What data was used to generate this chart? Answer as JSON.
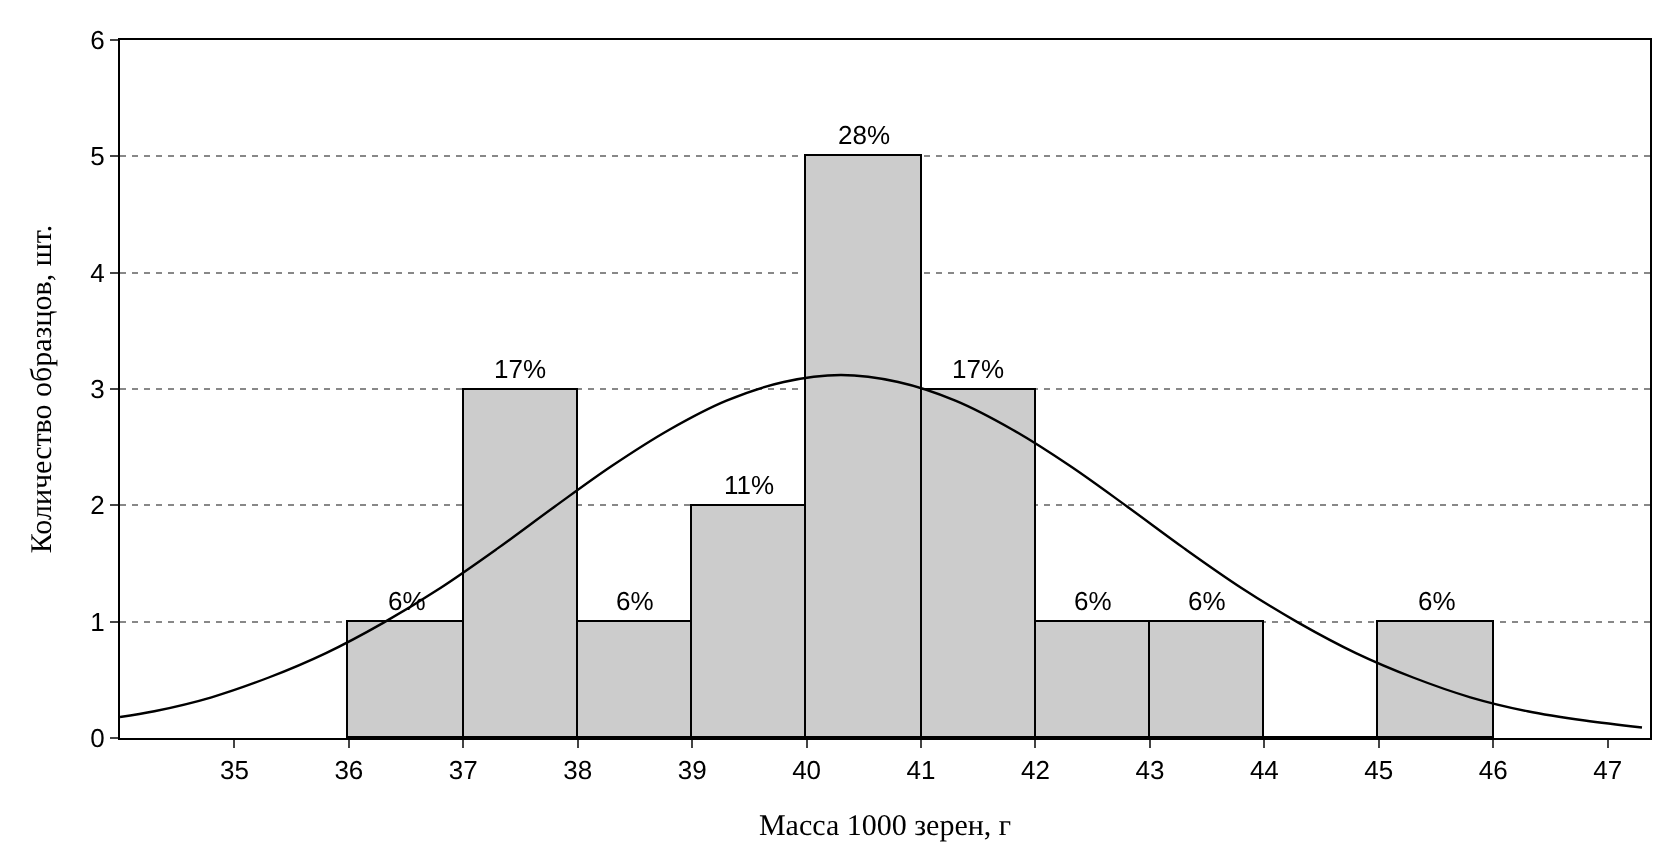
{
  "chart_data": {
    "type": "histogram",
    "xlabel": "Масса 1000 зерен, г",
    "ylabel": "Количество образцов, шт.",
    "bins": [
      36,
      37,
      38,
      39,
      40,
      41,
      42,
      43,
      44,
      45,
      46
    ],
    "values": [
      1,
      3,
      1,
      2,
      5,
      3,
      1,
      1,
      0,
      1
    ],
    "annotations": [
      {
        "text": "6%",
        "x": 36.5,
        "y": 1
      },
      {
        "text": "17%",
        "x": 37.5,
        "y": 3
      },
      {
        "text": "6%",
        "x": 38.5,
        "y": 1
      },
      {
        "text": "11%",
        "x": 39.5,
        "y": 2
      },
      {
        "text": "28%",
        "x": 40.5,
        "y": 5
      },
      {
        "text": "17%",
        "x": 41.5,
        "y": 3
      },
      {
        "text": "6%",
        "x": 42.5,
        "y": 1
      },
      {
        "text": "6%",
        "x": 43.5,
        "y": 1
      },
      {
        "text": "6%",
        "x": 45.5,
        "y": 1
      }
    ],
    "color": "#cccccc",
    "series": [
      {
        "type": "line",
        "color": "#000000",
        "x": [
          34.0,
          34.3,
          34.8,
          35.3,
          35.8,
          36.3,
          36.8,
          37.3,
          37.8,
          38.3,
          38.8,
          39.3,
          39.8,
          40.3,
          40.8,
          41.3,
          41.8,
          42.3,
          42.8,
          43.3,
          43.8,
          44.3,
          44.8,
          45.3,
          45.8,
          46.3,
          46.8,
          47.3
        ],
        "values": [
          0.18,
          0.23,
          0.35,
          0.52,
          0.73,
          0.99,
          1.29,
          1.63,
          1.99,
          2.34,
          2.65,
          2.9,
          3.06,
          3.12,
          3.06,
          2.9,
          2.65,
          2.34,
          1.99,
          1.63,
          1.29,
          0.99,
          0.73,
          0.52,
          0.35,
          0.23,
          0.15,
          0.09
        ]
      }
    ],
    "xlim": [
      34,
      47.37
    ],
    "xticks": [
      35,
      36,
      37,
      38,
      39,
      40,
      41,
      42,
      43,
      44,
      45,
      46,
      47
    ],
    "ylim": [
      0,
      6
    ],
    "yticks": [
      0,
      1,
      2,
      3,
      4,
      5,
      6
    ],
    "grid": "y"
  }
}
